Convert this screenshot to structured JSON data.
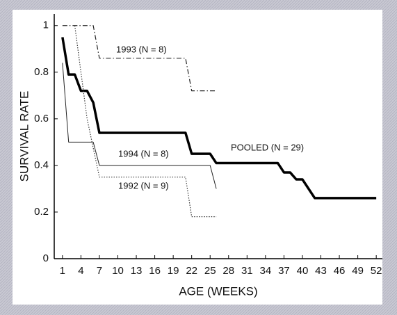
{
  "chart_data": {
    "type": "line",
    "xlabel": "AGE (WEEKS)",
    "ylabel": "SURVIVAL RATE",
    "xlim": [
      0,
      53
    ],
    "ylim": [
      0,
      1.05
    ],
    "xticks": [
      1,
      4,
      7,
      10,
      13,
      16,
      19,
      22,
      25,
      28,
      31,
      34,
      37,
      40,
      43,
      46,
      49,
      52
    ],
    "yticks": [
      0,
      0.2,
      0.4,
      0.6,
      0.8,
      1
    ],
    "series": [
      {
        "name": "1993 (N = 8)",
        "color": "#222222",
        "style": "dashdot",
        "x": [
          1,
          6,
          7,
          21,
          22,
          26
        ],
        "values": [
          1,
          1,
          0.86,
          0.86,
          0.72,
          0.72
        ]
      },
      {
        "name": "1994 (N = 8)",
        "color": "#222222",
        "style": "thin",
        "x": [
          1,
          2,
          6,
          7,
          25,
          26
        ],
        "values": [
          0.84,
          0.5,
          0.5,
          0.4,
          0.4,
          0.3
        ]
      },
      {
        "name": "POOLED (N = 29)",
        "color": "#000000",
        "style": "thick",
        "x": [
          1,
          2,
          3,
          4,
          5,
          6,
          7,
          21,
          22,
          25,
          26,
          36,
          37,
          38,
          39,
          40,
          42,
          52
        ],
        "values": [
          0.95,
          0.79,
          0.79,
          0.72,
          0.72,
          0.67,
          0.54,
          0.54,
          0.45,
          0.45,
          0.41,
          0.41,
          0.37,
          0.37,
          0.34,
          0.34,
          0.26,
          0.26
        ]
      },
      {
        "name": "1992 (N = 9)",
        "color": "#333333",
        "style": "dotted",
        "x": [
          3,
          5,
          7,
          21,
          22,
          26
        ],
        "values": [
          1,
          0.6,
          0.35,
          0.35,
          0.18,
          0.18
        ]
      }
    ]
  }
}
